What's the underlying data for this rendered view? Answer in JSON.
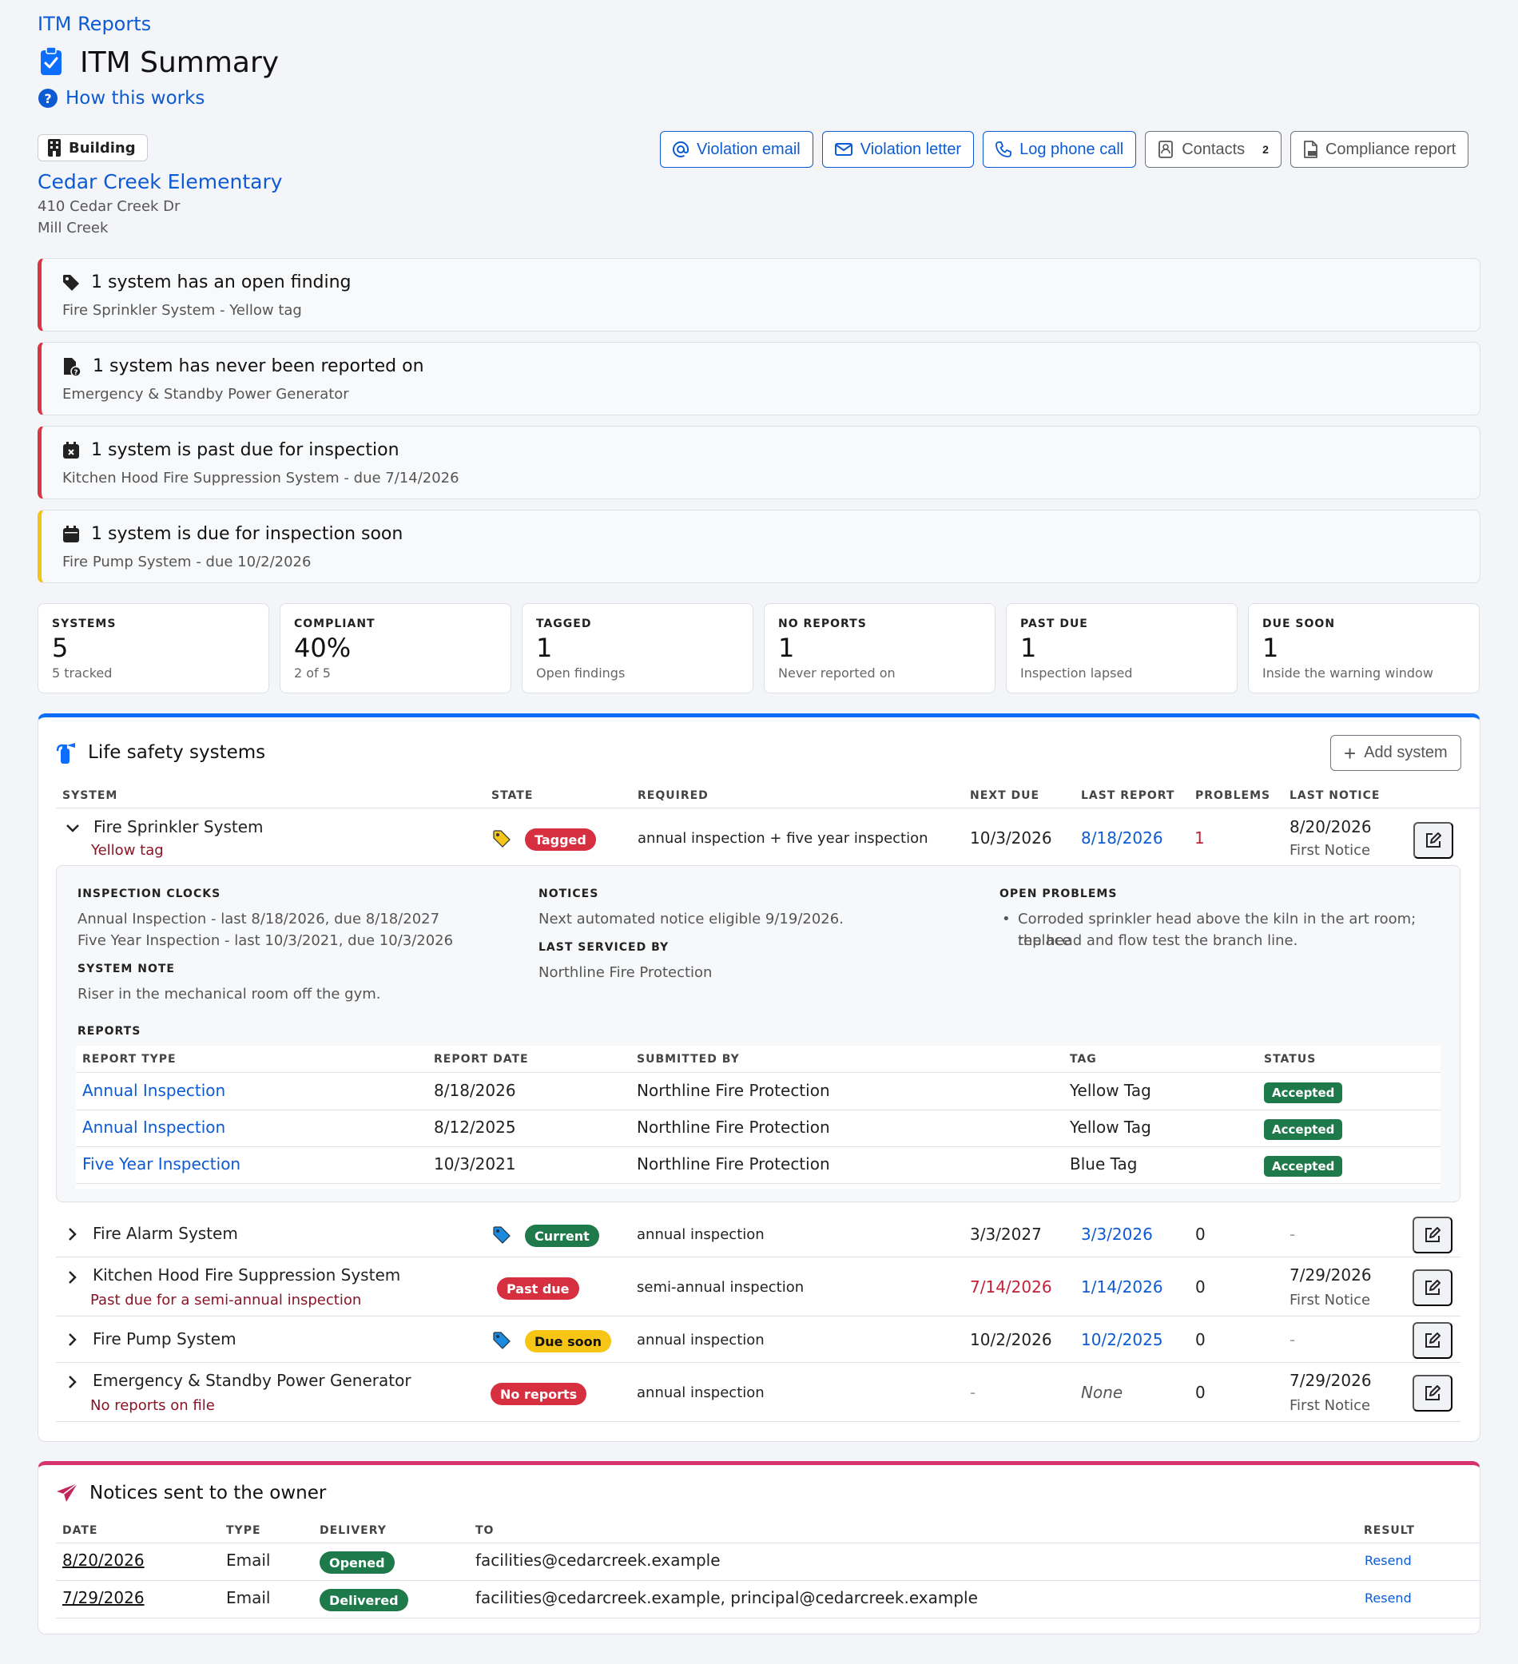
{
  "breadcrumb": "ITM Reports",
  "page_title": "ITM Summary",
  "how_link": "How this works",
  "building": {
    "badge": "Building",
    "name": "Cedar Creek Elementary",
    "address_line1": "410 Cedar Creek Dr",
    "address_line2": "Mill Creek"
  },
  "actions": {
    "violation_email": "Violation email",
    "violation_letter": "Violation letter",
    "log_phone_call": "Log phone call",
    "contacts": "Contacts",
    "contacts_count": "2",
    "compliance_report": "Compliance report"
  },
  "alerts": [
    {
      "title": "1 system has an open finding",
      "detail": "Fire Sprinkler System - Yellow tag",
      "severity": "danger"
    },
    {
      "title": "1 system has never been reported on",
      "detail": "Emergency & Standby Power Generator",
      "severity": "danger"
    },
    {
      "title": "1 system is past due for inspection",
      "detail": "Kitchen Hood Fire Suppression System - due 7/14/2026",
      "severity": "danger"
    },
    {
      "title": "1 system is due for inspection soon",
      "detail": "Fire Pump System - due 10/2/2026",
      "severity": "warning"
    }
  ],
  "stats": [
    {
      "label": "SYSTEMS",
      "value": "5",
      "sub": "5 tracked"
    },
    {
      "label": "COMPLIANT",
      "value": "40%",
      "sub": "2 of 5"
    },
    {
      "label": "TAGGED",
      "value": "1",
      "sub": "Open findings"
    },
    {
      "label": "NO REPORTS",
      "value": "1",
      "sub": "Never reported on"
    },
    {
      "label": "PAST DUE",
      "value": "1",
      "sub": "Inspection lapsed"
    },
    {
      "label": "DUE SOON",
      "value": "1",
      "sub": "Inside the warning window"
    }
  ],
  "systems_card": {
    "title": "Life safety systems",
    "add_button": "Add system",
    "columns": [
      "SYSTEM",
      "STATE",
      "REQUIRED",
      "NEXT DUE",
      "LAST REPORT",
      "PROBLEMS",
      "LAST NOTICE"
    ],
    "rows": [
      {
        "name": "Fire Sprinkler System",
        "sub": "Yellow tag",
        "tag_icon": "yellow-tag-icon",
        "state": "Tagged",
        "required": "annual inspection + five year inspection",
        "next_due": "10/3/2026",
        "last_report": "8/18/2026",
        "problems": "1",
        "last_notice": "8/20/2026",
        "last_notice_sub": "First Notice",
        "expanded": true
      },
      {
        "name": "Fire Alarm System",
        "sub": "",
        "tag_icon": "blue-tag-icon",
        "state": "Current",
        "required": "annual inspection",
        "next_due": "3/3/2027",
        "last_report": "3/3/2026",
        "problems": "0",
        "last_notice": "-",
        "last_notice_sub": ""
      },
      {
        "name": "Kitchen Hood Fire Suppression System",
        "sub": "Past due for a semi-annual inspection",
        "tag_icon": "",
        "state": "Past due",
        "required": "semi-annual inspection",
        "next_due": "7/14/2026",
        "last_report": "1/14/2026",
        "problems": "0",
        "last_notice": "7/29/2026",
        "last_notice_sub": "First Notice"
      },
      {
        "name": "Fire Pump System",
        "sub": "",
        "tag_icon": "blue-tag-icon",
        "state": "Due soon",
        "required": "annual inspection",
        "next_due": "10/2/2026",
        "last_report": "10/2/2025",
        "problems": "0",
        "last_notice": "-",
        "last_notice_sub": ""
      },
      {
        "name": "Emergency & Standby Power Generator",
        "sub": "No reports on file",
        "tag_icon": "",
        "state": "No reports",
        "required": "annual inspection",
        "next_due": "-",
        "last_report": "None",
        "problems": "0",
        "last_notice": "7/29/2026",
        "last_notice_sub": "First Notice"
      }
    ],
    "detail": {
      "clocks_label": "INSPECTION CLOCKS",
      "clock_1": "Annual Inspection - last 8/18/2026, due 8/18/2027",
      "clock_2": "Five Year Inspection - last 10/3/2021, due 10/3/2026",
      "note_label": "SYSTEM NOTE",
      "note": "Riser in the mechanical room off the gym.",
      "notices_label": "NOTICES",
      "notices": "Next automated notice eligible 9/19/2026.",
      "serviced_label": "LAST SERVICED BY",
      "serviced_by": "Northline Fire Protection",
      "problems_label": "OPEN PROBLEMS",
      "problem_1_line1": "Corroded sprinkler head above the kiln in the art room; replace",
      "problem_1_line2": "the head and flow test the branch line.",
      "reports_label": "REPORTS",
      "report_columns": [
        "REPORT TYPE",
        "REPORT DATE",
        "SUBMITTED BY",
        "TAG",
        "STATUS"
      ],
      "reports": [
        {
          "type": "Annual Inspection",
          "date": "8/18/2026",
          "by": "Northline Fire Protection",
          "tag": "Yellow Tag",
          "status": "Accepted"
        },
        {
          "type": "Annual Inspection",
          "date": "8/12/2025",
          "by": "Northline Fire Protection",
          "tag": "Yellow Tag",
          "status": "Accepted"
        },
        {
          "type": "Five Year Inspection",
          "date": "10/3/2021",
          "by": "Northline Fire Protection",
          "tag": "Blue Tag",
          "status": "Accepted"
        }
      ]
    }
  },
  "notices_card": {
    "title": "Notices sent to the owner",
    "columns": [
      "DATE",
      "TYPE",
      "DELIVERY",
      "TO",
      "RESULT"
    ],
    "rows": [
      {
        "date": "8/20/2026",
        "type": "Email",
        "delivery": "Opened",
        "to": "facilities@cedarcreek.example",
        "result": "Resend"
      },
      {
        "date": "7/29/2026",
        "type": "Email",
        "delivery": "Delivered",
        "to": "facilities@cedarcreek.example, principal@cedarcreek.example",
        "result": "Resend"
      }
    ]
  },
  "colors": {
    "primary": "#0d5bd3",
    "danger": "#d62f40",
    "success": "#1e7a4a",
    "warning": "#f7c515",
    "accent_pink": "#d6336c"
  }
}
